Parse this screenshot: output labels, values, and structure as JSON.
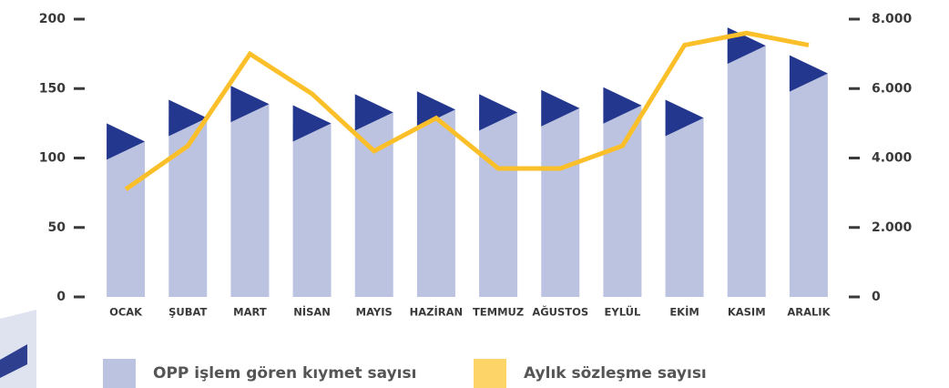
{
  "chart_data": {
    "type": "bar_line",
    "categories": [
      "OCAK",
      "ŞUBAT",
      "MART",
      "NİSAN",
      "MAYIS",
      "HAZİRAN",
      "TEMMUZ",
      "AĞUSTOS",
      "EYLÜL",
      "EKİM",
      "KASIM",
      "ARALIK"
    ],
    "series": [
      {
        "name": "OPP işlem gören kıymet sayısı",
        "color": "#bcc3e0",
        "accent": "#23378f",
        "type": "bar",
        "values": [
          125,
          142,
          152,
          138,
          146,
          148,
          146,
          149,
          151,
          142,
          194,
          174
        ]
      },
      {
        "name": "Aylık sözleşme sayısı",
        "color": "#fbbf2a",
        "type": "line",
        "axis": "y2",
        "values": [
          3100,
          4350,
          7000,
          5850,
          4200,
          5150,
          3700,
          3700,
          4350,
          7250,
          7600,
          7250
        ]
      }
    ],
    "ylim": [
      0,
      200
    ],
    "yticks": [
      0,
      50,
      100,
      150,
      200
    ],
    "y2lim": [
      0,
      8000
    ],
    "y2ticks": [
      {
        "value": 0,
        "label": "0"
      },
      {
        "value": 2000,
        "label": "2.000"
      },
      {
        "value": 4000,
        "label": "4.000"
      },
      {
        "value": 6000,
        "label": "6.000"
      },
      {
        "value": 8000,
        "label": "8.000"
      }
    ]
  }
}
